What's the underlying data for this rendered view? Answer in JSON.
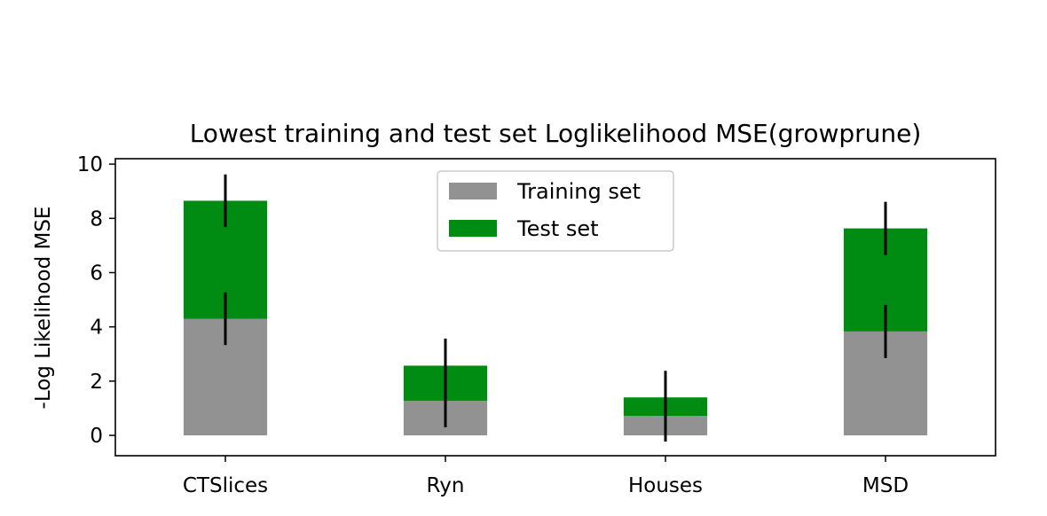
{
  "chart_data": {
    "type": "bar",
    "stacked": true,
    "title": "Lowest training and test set Loglikelihood MSE(growprune)",
    "xlabel": "",
    "ylabel": "-Log Likelihood MSE",
    "categories": [
      "CTSlices",
      "Ryn",
      "Houses",
      "MSD"
    ],
    "ylim": [
      -0.75,
      10.2
    ],
    "yticks": [
      0,
      2,
      4,
      6,
      8,
      10
    ],
    "grid": false,
    "legend_position": "top-center",
    "series": [
      {
        "name": "Training set",
        "color": "#929292",
        "values": [
          4.3,
          1.27,
          0.72,
          3.83
        ],
        "error": [
          0.97,
          0.97,
          0.95,
          0.98
        ]
      },
      {
        "name": "Test set",
        "color": "#008b13",
        "values": [
          4.35,
          1.3,
          0.68,
          3.8
        ],
        "error": [
          0.97,
          1.0,
          0.98,
          0.98
        ]
      }
    ]
  }
}
